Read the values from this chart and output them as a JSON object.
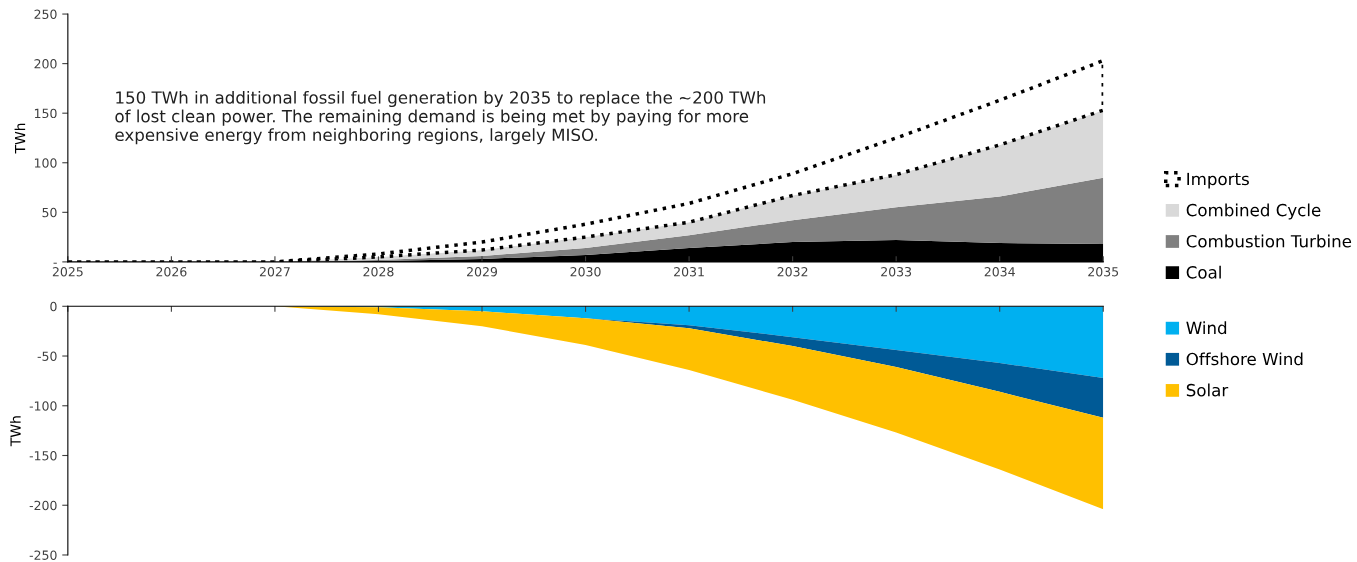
{
  "chart_data": [
    {
      "type": "area",
      "stacked": true,
      "ylabel": "TWh",
      "x": [
        2025,
        2026,
        2027,
        2028,
        2029,
        2030,
        2031,
        2032,
        2033,
        2034,
        2035
      ],
      "xlim": [
        2025,
        2035
      ],
      "xticks": [
        2025,
        2026,
        2027,
        2028,
        2029,
        2030,
        2031,
        2032,
        2033,
        2034,
        2035
      ],
      "ylim": [
        0,
        250
      ],
      "yticks": [
        {
          "value": 0,
          "label": "-"
        },
        50,
        100,
        150,
        200,
        250
      ],
      "annotations": [
        "150 TWh in additional fossil fuel generation by 2035 to replace the ~200 TWh\nof lost clean power. The remaining demand is being met by paying for more\nexpensive energy from neighboring regions, largely MISO."
      ],
      "legend": "right",
      "series": [
        {
          "name": "Coal",
          "color": "#000000",
          "values": [
            0,
            0,
            0,
            1,
            3,
            7,
            14,
            20,
            22,
            19,
            18
          ]
        },
        {
          "name": "Combustion Turbine",
          "color": "#808080",
          "values": [
            0,
            0,
            0,
            1,
            3,
            7,
            13,
            22,
            33,
            47,
            67
          ]
        },
        {
          "name": "Combined Cycle",
          "color": "#d9d9d9",
          "values": [
            0,
            0,
            0,
            3,
            6,
            11,
            13,
            25,
            33,
            52,
            68
          ]
        },
        {
          "name": "Imports",
          "color": "#ffffff",
          "line_style": "dotted",
          "values": [
            0,
            0,
            0,
            3,
            8,
            13,
            19,
            22,
            37,
            45,
            50
          ]
        }
      ]
    },
    {
      "type": "area",
      "stacked": true,
      "ylabel": "TWh",
      "x": [
        2025,
        2026,
        2027,
        2028,
        2029,
        2030,
        2031,
        2032,
        2033,
        2034,
        2035
      ],
      "xlim": [
        2025,
        2035
      ],
      "xticks": [
        2025,
        2026,
        2027,
        2028,
        2029,
        2030,
        2031,
        2032,
        2033,
        2034,
        2035
      ],
      "ylim": [
        -250,
        0
      ],
      "yticks": [
        -250,
        -200,
        -150,
        -100,
        -50,
        0
      ],
      "tick_labels": "y",
      "legend": "right",
      "series": [
        {
          "name": "Wind",
          "color": "#00b0f0",
          "values": [
            0,
            0,
            0,
            -1,
            -5,
            -12,
            -19,
            -31,
            -44,
            -57,
            -72
          ]
        },
        {
          "name": "Offshore Wind",
          "color": "#005a96",
          "values": [
            0,
            0,
            0,
            0,
            0,
            0,
            -3,
            -9,
            -17,
            -29,
            -40
          ]
        },
        {
          "name": "Solar",
          "color": "#ffc000",
          "values": [
            0,
            0,
            0,
            -7,
            -15,
            -27,
            -42,
            -54,
            -66,
            -78,
            -92
          ]
        }
      ]
    }
  ]
}
